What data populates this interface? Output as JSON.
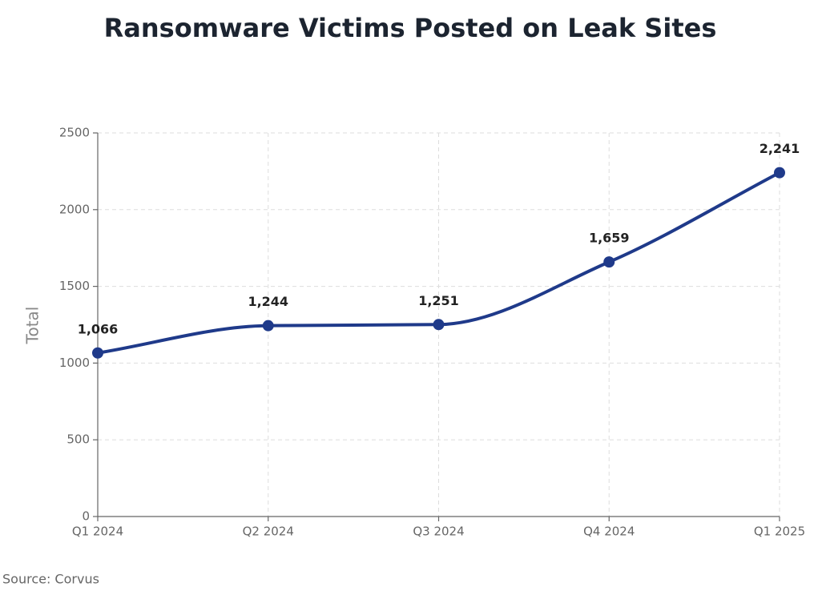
{
  "chart_data": {
    "type": "line",
    "title": "Ransomware Victims Posted on Leak Sites",
    "y_label": "Total",
    "source": "Source: Corvus",
    "categories": [
      "Q1 2024",
      "Q2 2024",
      "Q3 2024",
      "Q4 2024",
      "Q1 2025"
    ],
    "series": [
      {
        "name": "Total",
        "color": "#1f3a8a",
        "values": [
          1066,
          1244,
          1251,
          1659,
          2241
        ],
        "value_labels": [
          "1,066",
          "1,244",
          "1,251",
          "1,659",
          "2,241"
        ]
      }
    ],
    "ylim": [
      0,
      2500
    ],
    "yticks": [
      0,
      500,
      1000,
      1500,
      2000,
      2500
    ],
    "grid": true
  }
}
